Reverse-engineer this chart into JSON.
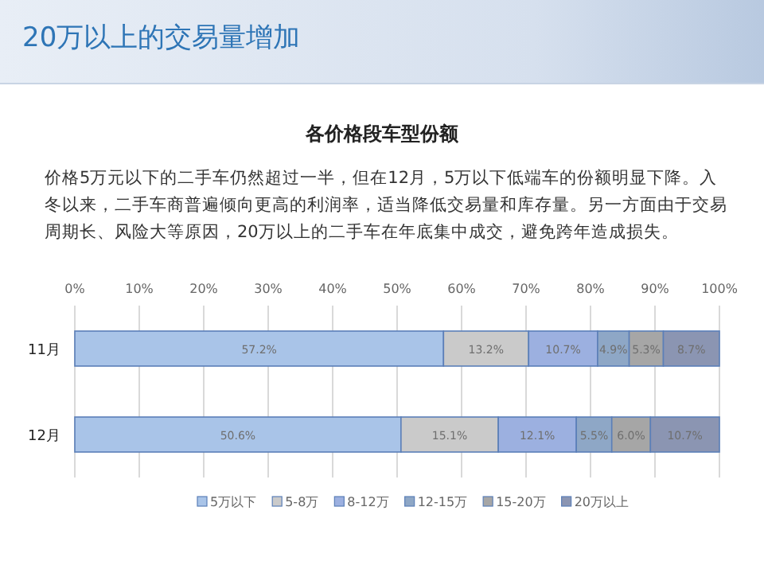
{
  "chart_data": {
    "type": "bar",
    "orientation": "horizontal",
    "stacked": true,
    "title": "20万以上的交易量增加",
    "subtitle": "各价格段车型份额",
    "annotations": [
      "价格5万元以下的二手车仍然超过一半，但在12月，5万以下低端车的份额明显下降。入冬以来，二手车商普遍倾向更高的利润率，适当降低交易量和库存量。另一方面由于交易周期长、风险大等原因，20万以上的二手车在年底集中成交，避免跨年造成损失。"
    ],
    "categories": [
      "11月",
      "12月"
    ],
    "series": [
      {
        "name": "5万以下",
        "color": "#a9c4e8",
        "values": [
          57.2,
          50.6
        ],
        "value_labels": [
          "57.2%",
          "50.6%"
        ]
      },
      {
        "name": "5-8万",
        "color": "#cacaca",
        "values": [
          13.2,
          15.1
        ],
        "value_labels": [
          "13.2%",
          "15.1%"
        ]
      },
      {
        "name": "8-12万",
        "color": "#9cb0e0",
        "values": [
          10.7,
          12.1
        ],
        "value_labels": [
          "10.7%",
          "12.1%"
        ]
      },
      {
        "name": "12-15万",
        "color": "#8ea7c6",
        "values": [
          4.9,
          5.5
        ],
        "value_labels": [
          "4.9%",
          "5.5%"
        ]
      },
      {
        "name": "15-20万",
        "color": "#a6a6a6",
        "values": [
          5.3,
          6.0
        ],
        "value_labels": [
          "5.3%",
          "6.0%"
        ]
      },
      {
        "name": "20万以上",
        "color": "#8b95b2",
        "values": [
          8.7,
          10.7
        ],
        "value_labels": [
          "8.7%",
          "10.7%"
        ]
      }
    ],
    "xlim": [
      0,
      100
    ],
    "xticks": [
      {
        "value": 0,
        "label": "0%"
      },
      {
        "value": 10,
        "label": "10%"
      },
      {
        "value": 20,
        "label": "20%"
      },
      {
        "value": 30,
        "label": "30%"
      },
      {
        "value": 40,
        "label": "40%"
      },
      {
        "value": 50,
        "label": "50%"
      },
      {
        "value": 60,
        "label": "60%"
      },
      {
        "value": 70,
        "label": "70%"
      },
      {
        "value": 80,
        "label": "80%"
      },
      {
        "value": 90,
        "label": "90%"
      },
      {
        "value": 100,
        "label": "100%"
      }
    ],
    "grid": "x",
    "legend": "bottom"
  }
}
